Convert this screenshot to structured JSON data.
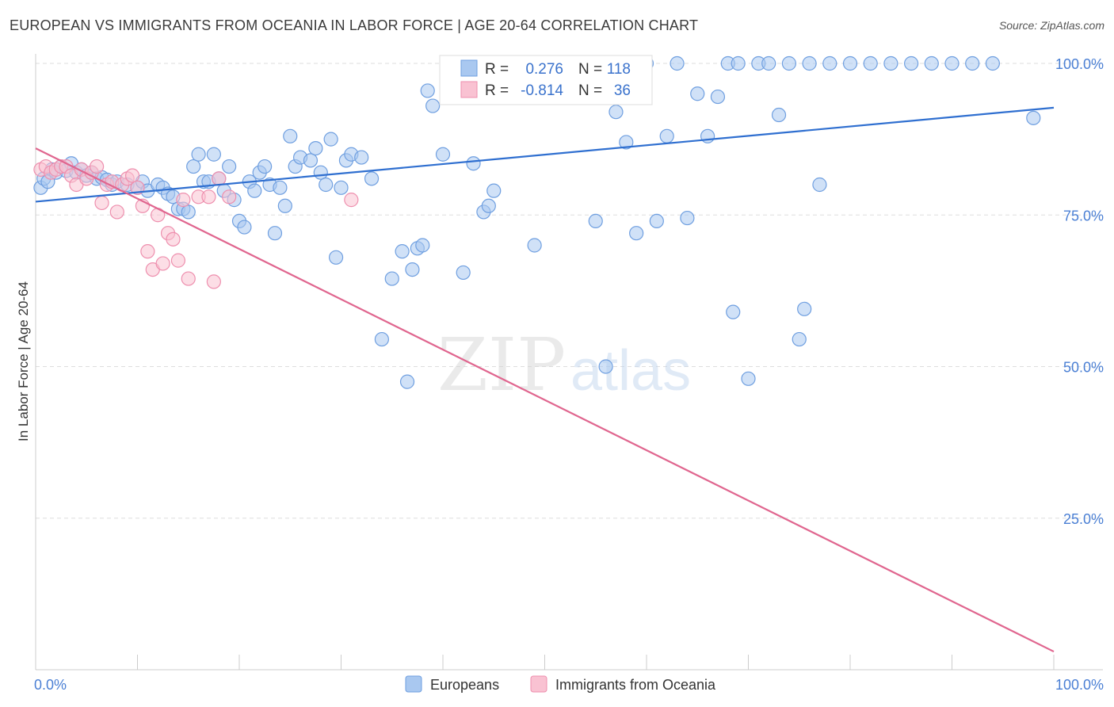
{
  "header": {
    "title": "EUROPEAN VS IMMIGRANTS FROM OCEANIA IN LABOR FORCE | AGE 20-64 CORRELATION CHART",
    "source": "Source: ZipAtlas.com"
  },
  "watermark": {
    "zip": "ZIP",
    "atlas": "atlas"
  },
  "stats": {
    "r_label": "R =",
    "n_label": "N =",
    "rows": [
      {
        "r": "0.276",
        "n": "118",
        "color": "#a9c8f0",
        "stroke": "#6f9fe0"
      },
      {
        "r": "-0.814",
        "n": "36",
        "color": "#f9c2d2",
        "stroke": "#ee8fae"
      }
    ]
  },
  "chart_data": {
    "type": "scatter",
    "title": "EUROPEAN VS IMMIGRANTS FROM OCEANIA IN LABOR FORCE | AGE 20-64 CORRELATION CHART",
    "xlabel": "",
    "ylabel": "In Labor Force | Age 20-64",
    "xlim": [
      0,
      100
    ],
    "ylim": [
      0,
      100
    ],
    "x_tick_labels": [
      "0.0%",
      "100.0%"
    ],
    "y_ticks": [
      25,
      50,
      75,
      100
    ],
    "y_tick_labels": [
      "25.0%",
      "50.0%",
      "75.0%",
      "100.0%"
    ],
    "grid": true,
    "legend_position": "bottom-center",
    "series": [
      {
        "name": "Europeans",
        "color": "#6f9fe0",
        "fill": "#a9c8f0",
        "trend": {
          "x": [
            0,
            100
          ],
          "y": [
            77.2,
            92.7
          ]
        },
        "points": [
          [
            0.5,
            79.5
          ],
          [
            0.8,
            81
          ],
          [
            1.2,
            80.5
          ],
          [
            1.6,
            82.5
          ],
          [
            2,
            82
          ],
          [
            2.5,
            83
          ],
          [
            3,
            82.3
          ],
          [
            3.5,
            83.5
          ],
          [
            4,
            82
          ],
          [
            4.5,
            82.5
          ],
          [
            5,
            81.5
          ],
          [
            5.5,
            82
          ],
          [
            6,
            81
          ],
          [
            6.5,
            81.2
          ],
          [
            7,
            80.8
          ],
          [
            7.5,
            80
          ],
          [
            8,
            80.5
          ],
          [
            9,
            80
          ],
          [
            10,
            79.5
          ],
          [
            10.5,
            80.5
          ],
          [
            11,
            79
          ],
          [
            12,
            80
          ],
          [
            12.5,
            79.5
          ],
          [
            13,
            78.5
          ],
          [
            13.5,
            78
          ],
          [
            14,
            76
          ],
          [
            14.5,
            76
          ],
          [
            15,
            75.5
          ],
          [
            15.5,
            83
          ],
          [
            16,
            85
          ],
          [
            16.5,
            80.5
          ],
          [
            17,
            80.5
          ],
          [
            17.5,
            85
          ],
          [
            18,
            81
          ],
          [
            18.5,
            79
          ],
          [
            19,
            83
          ],
          [
            19.5,
            77.5
          ],
          [
            20,
            74
          ],
          [
            20.5,
            73
          ],
          [
            21,
            80.5
          ],
          [
            21.5,
            79
          ],
          [
            22,
            82
          ],
          [
            22.5,
            83
          ],
          [
            23,
            80
          ],
          [
            23.5,
            72
          ],
          [
            24,
            79.5
          ],
          [
            24.5,
            76.5
          ],
          [
            25,
            88
          ],
          [
            25.5,
            83
          ],
          [
            26,
            84.5
          ],
          [
            27,
            84
          ],
          [
            27.5,
            86
          ],
          [
            28,
            82
          ],
          [
            28.5,
            80
          ],
          [
            29,
            87.5
          ],
          [
            29.5,
            68
          ],
          [
            30,
            79.5
          ],
          [
            30.5,
            84
          ],
          [
            31,
            85
          ],
          [
            32,
            84.5
          ],
          [
            33,
            81
          ],
          [
            34,
            54.5
          ],
          [
            35,
            64.5
          ],
          [
            36,
            69
          ],
          [
            36.5,
            47.5
          ],
          [
            37,
            66
          ],
          [
            37.5,
            69.5
          ],
          [
            38,
            70
          ],
          [
            38.5,
            95.5
          ],
          [
            39,
            93
          ],
          [
            40,
            85
          ],
          [
            41,
            98
          ],
          [
            42,
            65.5
          ],
          [
            43,
            83.5
          ],
          [
            44,
            75.5
          ],
          [
            44.5,
            76.5
          ],
          [
            45,
            79
          ],
          [
            46,
            100
          ],
          [
            47,
            100
          ],
          [
            48,
            100
          ],
          [
            49,
            70
          ],
          [
            50,
            100
          ],
          [
            51,
            100
          ],
          [
            52,
            100
          ],
          [
            53,
            100
          ],
          [
            54,
            100
          ],
          [
            55,
            74
          ],
          [
            56,
            50
          ],
          [
            57,
            92
          ],
          [
            58,
            87
          ],
          [
            59,
            72
          ],
          [
            60,
            100
          ],
          [
            61,
            74
          ],
          [
            62,
            88
          ],
          [
            63,
            100
          ],
          [
            64,
            74.5
          ],
          [
            65,
            95
          ],
          [
            66,
            88
          ],
          [
            67,
            94.5
          ],
          [
            68,
            100
          ],
          [
            68.5,
            59
          ],
          [
            69,
            100
          ],
          [
            70,
            48
          ],
          [
            71,
            100
          ],
          [
            72,
            100
          ],
          [
            73,
            91.5
          ],
          [
            74,
            100
          ],
          [
            75,
            54.5
          ],
          [
            75.5,
            59.5
          ],
          [
            76,
            100
          ],
          [
            77,
            80
          ],
          [
            78,
            100
          ],
          [
            80,
            100
          ],
          [
            82,
            100
          ],
          [
            84,
            100
          ],
          [
            86,
            100
          ],
          [
            88,
            100
          ],
          [
            90,
            100
          ],
          [
            92,
            100
          ],
          [
            94,
            100
          ],
          [
            98,
            91
          ]
        ]
      },
      {
        "name": "Immigrants from Oceania",
        "color": "#ee8fae",
        "fill": "#f9c2d2",
        "trend": {
          "x": [
            0,
            100
          ],
          "y": [
            86,
            3
          ]
        },
        "points": [
          [
            0.5,
            82.5
          ],
          [
            1,
            83
          ],
          [
            1.5,
            82
          ],
          [
            2,
            82.5
          ],
          [
            2.5,
            83
          ],
          [
            3,
            83
          ],
          [
            3.5,
            81.5
          ],
          [
            4,
            80
          ],
          [
            4.5,
            82.5
          ],
          [
            5,
            81
          ],
          [
            5.5,
            82
          ],
          [
            6,
            83
          ],
          [
            6.5,
            77
          ],
          [
            7,
            80
          ],
          [
            7.5,
            80.5
          ],
          [
            8,
            75.5
          ],
          [
            8.5,
            80
          ],
          [
            9,
            81
          ],
          [
            9.5,
            81.5
          ],
          [
            10,
            79.5
          ],
          [
            10.5,
            76.5
          ],
          [
            11,
            69
          ],
          [
            11.5,
            66
          ],
          [
            12,
            75
          ],
          [
            12.5,
            67
          ],
          [
            13,
            72
          ],
          [
            13.5,
            71
          ],
          [
            14,
            67.5
          ],
          [
            14.5,
            77.5
          ],
          [
            15,
            64.5
          ],
          [
            16,
            78
          ],
          [
            17,
            78
          ],
          [
            17.5,
            64
          ],
          [
            18,
            81
          ],
          [
            19,
            78
          ],
          [
            31,
            77.5
          ]
        ]
      }
    ]
  },
  "legend": {
    "items": [
      {
        "label": "Europeans",
        "fill": "#a9c8f0",
        "stroke": "#6f9fe0"
      },
      {
        "label": "Immigrants from Oceania",
        "fill": "#f9c2d2",
        "stroke": "#ee8fae"
      }
    ]
  }
}
